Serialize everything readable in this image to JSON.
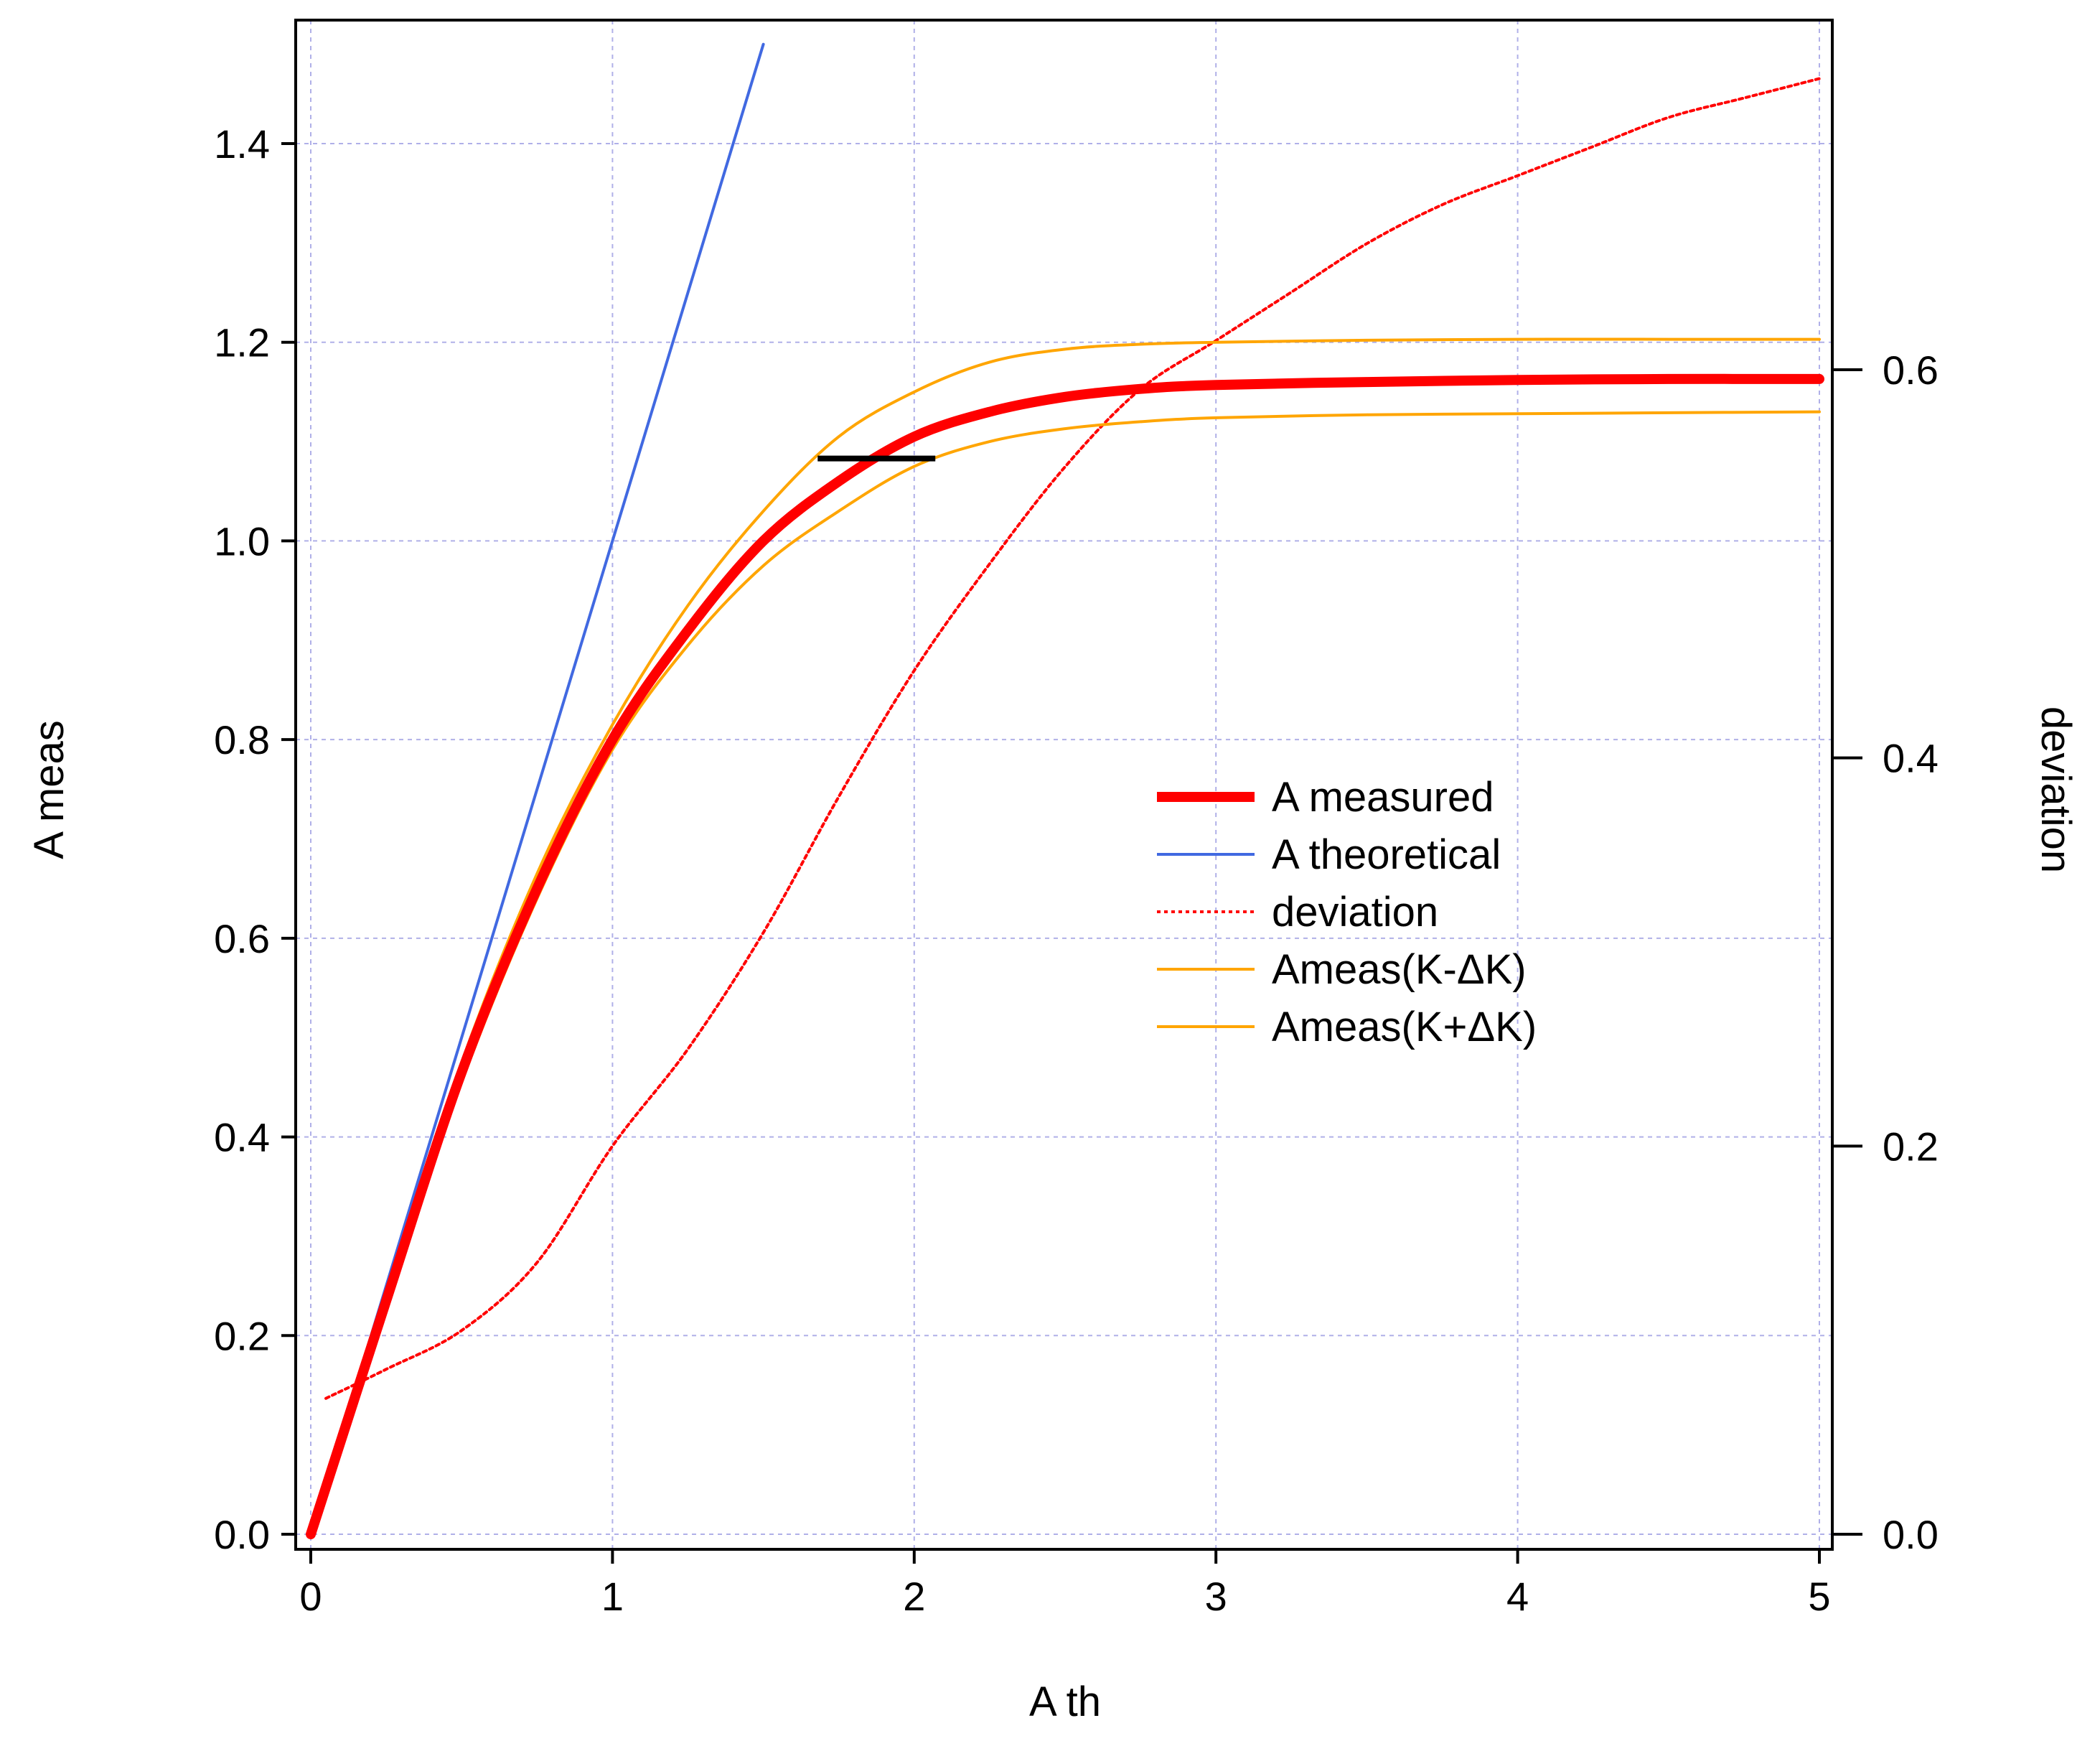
{
  "chart_data": {
    "type": "line",
    "title": "",
    "xlabel": "A th",
    "ylabel": "A meas",
    "y2label": "deviation",
    "xlim": [
      0,
      5
    ],
    "ylim": [
      0,
      1.5
    ],
    "y2lim": [
      0,
      0.75
    ],
    "grid": true,
    "legend_position": "center-right",
    "x_ticks": [
      "0",
      "1",
      "2",
      "3",
      "4",
      "5"
    ],
    "y_ticks": [
      "0.0",
      "0.2",
      "0.4",
      "0.6",
      "0.8",
      "1.0",
      "1.2",
      "1.4"
    ],
    "y2_ticks": [
      "0.0",
      "0.2",
      "0.4",
      "0.6"
    ],
    "colors": {
      "measured": "#ff0000",
      "theoretical": "#4169e1",
      "deviation": "#ff0000",
      "bounds": "#ffa500",
      "marker": "#000000",
      "grid": "#b0b0e8"
    },
    "series": [
      {
        "name": "A measured",
        "axis": "left",
        "x": [
          0,
          0.25,
          0.5,
          0.75,
          1.0,
          1.25,
          1.5,
          1.75,
          2.0,
          2.25,
          2.5,
          2.75,
          3.0,
          3.5,
          4.0,
          4.5,
          5.0
        ],
        "values": [
          0,
          0.235,
          0.465,
          0.65,
          0.8,
          0.91,
          1.0,
          1.06,
          1.105,
          1.13,
          1.145,
          1.153,
          1.157,
          1.16,
          1.162,
          1.163,
          1.163
        ]
      },
      {
        "name": "A theoretical",
        "axis": "left",
        "x": [
          0,
          1.5
        ],
        "values": [
          0,
          1.5
        ]
      },
      {
        "name": "deviation",
        "axis": "right",
        "x": [
          0.05,
          0.25,
          0.5,
          0.75,
          1.0,
          1.25,
          1.5,
          1.75,
          2.0,
          2.25,
          2.5,
          2.75,
          3.0,
          3.25,
          3.5,
          3.75,
          4.0,
          4.25,
          4.5,
          4.75,
          5.0
        ],
        "values": [
          0.07,
          0.085,
          0.105,
          0.14,
          0.2,
          0.25,
          0.31,
          0.38,
          0.445,
          0.5,
          0.55,
          0.59,
          0.615,
          0.64,
          0.665,
          0.685,
          0.7,
          0.715,
          0.73,
          0.74,
          0.75
        ]
      },
      {
        "name": "Ameas(K-ΔK)",
        "axis": "left",
        "x": [
          0,
          0.25,
          0.5,
          0.75,
          1.0,
          1.25,
          1.5,
          1.75,
          2.0,
          2.25,
          2.5,
          2.75,
          3.0,
          3.5,
          4.0,
          4.5,
          5.0
        ],
        "values": [
          0,
          0.24,
          0.475,
          0.665,
          0.815,
          0.935,
          1.03,
          1.105,
          1.15,
          1.18,
          1.193,
          1.198,
          1.2,
          1.202,
          1.203,
          1.203,
          1.203
        ]
      },
      {
        "name": "Ameas(K+ΔK)",
        "axis": "left",
        "x": [
          0,
          0.25,
          0.5,
          0.75,
          1.0,
          1.25,
          1.5,
          1.75,
          2.0,
          2.25,
          2.5,
          2.75,
          3.0,
          3.5,
          4.0,
          4.5,
          5.0
        ],
        "values": [
          0,
          0.23,
          0.455,
          0.64,
          0.79,
          0.895,
          0.975,
          1.03,
          1.075,
          1.1,
          1.113,
          1.12,
          1.124,
          1.127,
          1.128,
          1.129,
          1.13
        ]
      }
    ],
    "annotations": [
      {
        "type": "hline-segment",
        "x": [
          1.68,
          2.07
        ],
        "y": 1.083
      }
    ]
  }
}
